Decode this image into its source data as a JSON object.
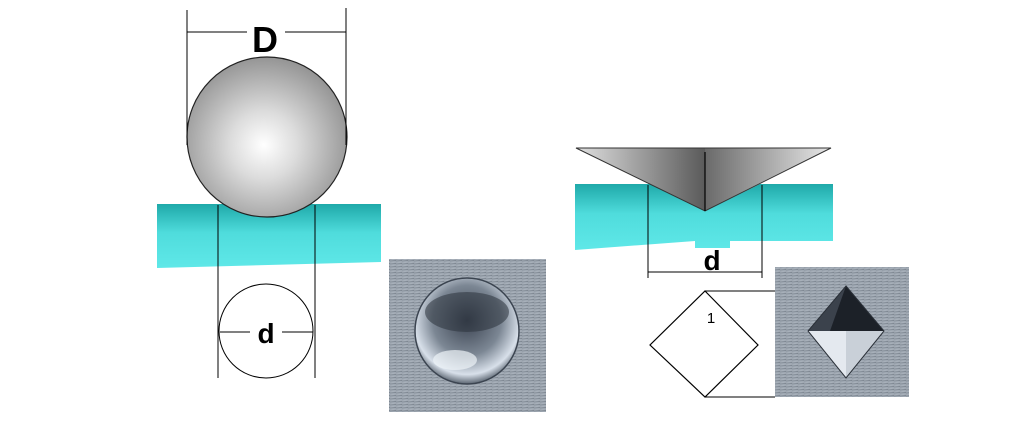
{
  "brinell": {
    "ball_diameter_label": "D",
    "indent_diameter_label": "d"
  },
  "vickers": {
    "indent_diagonal_label": "d",
    "corner_label": "1"
  },
  "colors": {
    "specimen": "#4ad8d8",
    "background": "#ffffff",
    "outline": "#000000"
  }
}
